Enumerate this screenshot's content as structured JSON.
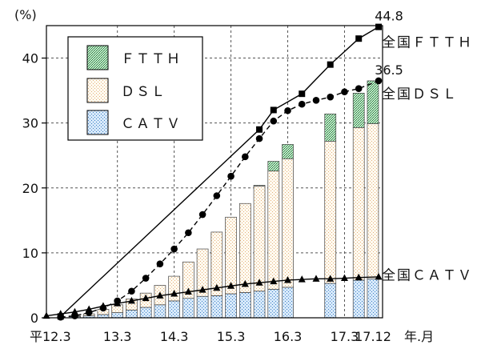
{
  "chart_data": {
    "type": "bar",
    "unit_label": "(%)",
    "x_unit_label": "年.月",
    "x_tick_labels": [
      "平12.3",
      "13.3",
      "14.3",
      "15.3",
      "16.3",
      "17.3",
      "17.12"
    ],
    "y_ticks": [
      0,
      10,
      20,
      30,
      40
    ],
    "ylim": [
      0,
      45
    ],
    "grid": true,
    "legend_position": "top-left",
    "legend": [
      "ＦＴＴＨ",
      "ＤＳＬ",
      "ＣＡＴＶ"
    ],
    "colors": {
      "ftth": "#3a9a50",
      "dsl": "#e8c79a",
      "catv": "#5b9bd5",
      "line": "#000000"
    },
    "stacked_bars": {
      "x": [
        2000.5,
        2000.75,
        2001.0,
        2001.25,
        2001.5,
        2001.75,
        2002.0,
        2002.25,
        2002.5,
        2002.75,
        2003.0,
        2003.25,
        2003.5,
        2003.75,
        2004.0,
        2004.25,
        2005.0,
        2005.5,
        2005.75
      ],
      "series": [
        {
          "name": "ＣＡＴＶ",
          "key": "catv",
          "values": [
            0.2,
            0.3,
            0.5,
            0.8,
            1.2,
            1.6,
            2.0,
            2.6,
            3.0,
            3.3,
            3.4,
            3.7,
            3.9,
            4.1,
            4.4,
            4.7,
            5.3,
            5.8,
            6.0
          ]
        },
        {
          "name": "ＤＳＬ",
          "key": "dsl",
          "values": [
            0.1,
            0.3,
            0.8,
            1.2,
            1.7,
            2.2,
            3.0,
            3.8,
            5.6,
            7.3,
            9.8,
            11.8,
            13.7,
            16.2,
            18.2,
            19.8,
            21.9,
            23.5,
            23.9
          ]
        },
        {
          "name": "ＦＴＴＨ",
          "key": "ftth",
          "values": [
            0,
            0,
            0,
            0,
            0,
            0,
            0,
            0,
            0,
            0,
            0,
            0,
            0,
            0.1,
            1.5,
            2.2,
            4.2,
            5.3,
            6.6
          ]
        }
      ]
    },
    "lines": [
      {
        "name": "全国ＦＴＴＨ",
        "marker": "square",
        "dash": "solid",
        "x": [
          2000.25,
          2003.75,
          2004.0,
          2004.5,
          2005.0,
          2005.5,
          2005.85
        ],
        "y": [
          0.2,
          29.0,
          32.0,
          34.5,
          39.0,
          43.0,
          44.8
        ],
        "end_label": "44.8"
      },
      {
        "name": "全国ＤＳＬ",
        "marker": "circle",
        "dash": "dashed",
        "x": [
          2000.25,
          2000.5,
          2000.75,
          2001.0,
          2001.25,
          2001.5,
          2001.75,
          2002.0,
          2002.25,
          2002.5,
          2002.75,
          2003.0,
          2003.25,
          2003.5,
          2003.75,
          2004.0,
          2004.25,
          2004.5,
          2004.75,
          2005.0,
          2005.25,
          2005.5,
          2005.85
        ],
        "y": [
          0.1,
          0.3,
          0.8,
          1.5,
          2.6,
          4.1,
          6.1,
          8.3,
          10.6,
          13.1,
          15.9,
          18.8,
          21.8,
          24.8,
          27.6,
          30.3,
          31.9,
          32.9,
          33.5,
          34.0,
          34.8,
          35.3,
          36.5
        ],
        "end_label": "36.5"
      },
      {
        "name": "全国ＣＡＴＶ",
        "marker": "triangle",
        "dash": "solid",
        "x": [
          2000.0,
          2000.25,
          2000.5,
          2000.75,
          2001.0,
          2001.25,
          2001.5,
          2001.75,
          2002.0,
          2002.25,
          2002.5,
          2002.75,
          2003.0,
          2003.25,
          2003.5,
          2003.75,
          2004.0,
          2004.25,
          2004.5,
          2004.75,
          2005.0,
          2005.25,
          2005.5,
          2005.85
        ],
        "y": [
          0.3,
          0.6,
          0.9,
          1.3,
          1.8,
          2.2,
          2.6,
          3.0,
          3.4,
          3.7,
          4.0,
          4.3,
          4.6,
          4.9,
          5.2,
          5.4,
          5.6,
          5.8,
          5.9,
          6.0,
          6.0,
          6.1,
          6.2,
          6.3
        ]
      }
    ]
  }
}
